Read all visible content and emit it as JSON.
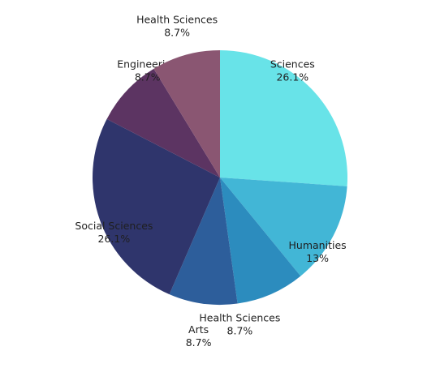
{
  "chart_data": {
    "type": "pie",
    "start_angle_deg": 0,
    "direction": "clockwise",
    "slices": [
      {
        "label": "Sciences",
        "percent_text": "26.1%",
        "value": 26.1,
        "color": "#68E3E8"
      },
      {
        "label": "Humanities",
        "percent_text": "13%",
        "value": 13.0,
        "color": "#42B6D6"
      },
      {
        "label": "Health Sciences",
        "percent_text": "8.7%",
        "value": 8.7,
        "color": "#2C8CBE"
      },
      {
        "label": "Arts",
        "percent_text": "8.7%",
        "value": 8.7,
        "color": "#2D5E9B"
      },
      {
        "label": "Social Sciences",
        "percent_text": "26.1%",
        "value": 26.1,
        "color": "#2F356C"
      },
      {
        "label": "Engineering",
        "percent_text": "8.7%",
        "value": 8.7,
        "color": "#5C3462"
      },
      {
        "label": "Health Sciences",
        "percent_text": "8.7%",
        "value": 8.7,
        "color": "#8A5672"
      }
    ]
  }
}
